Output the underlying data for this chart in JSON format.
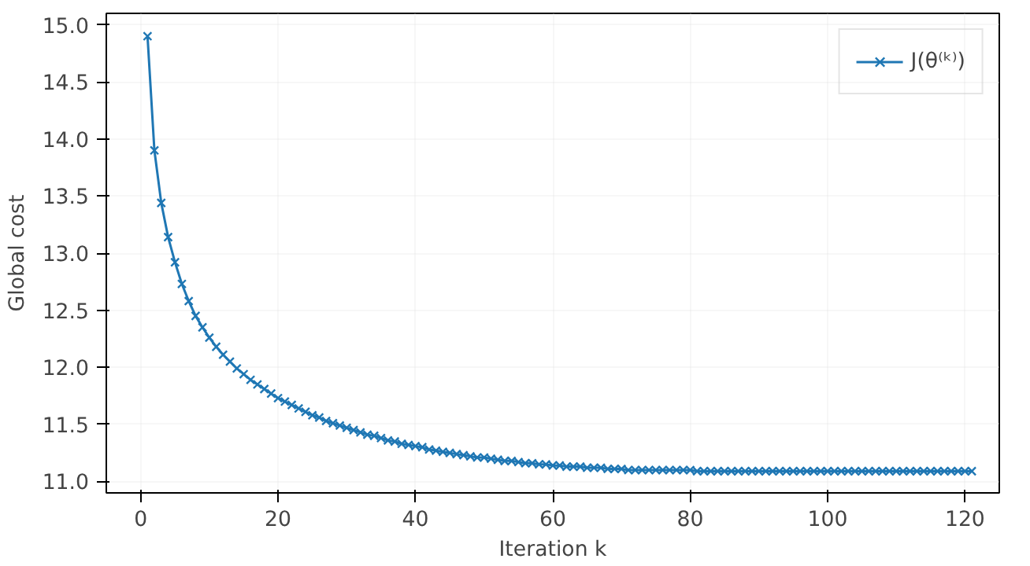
{
  "chart_data": {
    "type": "line",
    "xlabel": "Iteration k",
    "ylabel": "Global cost",
    "x": [
      1,
      2,
      3,
      4,
      5,
      6,
      7,
      8,
      9,
      10,
      11,
      12,
      13,
      14,
      15,
      16,
      17,
      18,
      19,
      20,
      21,
      22,
      23,
      24,
      25,
      26,
      27,
      28,
      29,
      30,
      31,
      32,
      33,
      34,
      35,
      36,
      37,
      38,
      39,
      40,
      41,
      42,
      43,
      44,
      45,
      46,
      47,
      48,
      49,
      50,
      51,
      52,
      53,
      54,
      55,
      56,
      57,
      58,
      59,
      60,
      61,
      62,
      63,
      64,
      65,
      66,
      67,
      68,
      69,
      70,
      71,
      72,
      73,
      74,
      75,
      76,
      77,
      78,
      79,
      80,
      81,
      82,
      83,
      84,
      85,
      86,
      87,
      88,
      89,
      90,
      91,
      92,
      93,
      94,
      95,
      96,
      97,
      98,
      99,
      100,
      101,
      102,
      103,
      104,
      105,
      106,
      107,
      108,
      109,
      110,
      111,
      112,
      113,
      114,
      115,
      116,
      117,
      118,
      119,
      120,
      121
    ],
    "series": [
      {
        "name": "J(θ⁽ᵏ⁾)",
        "color": "#1f77b4",
        "values": [
          14.9,
          13.9,
          13.44,
          13.14,
          12.92,
          12.73,
          12.58,
          12.45,
          12.35,
          12.26,
          12.18,
          12.11,
          12.05,
          11.99,
          11.94,
          11.89,
          11.85,
          11.81,
          11.77,
          11.73,
          11.7,
          11.67,
          11.64,
          11.61,
          11.58,
          11.56,
          11.53,
          11.51,
          11.49,
          11.47,
          11.45,
          11.43,
          11.41,
          11.4,
          11.38,
          11.36,
          11.35,
          11.33,
          11.32,
          11.31,
          11.3,
          11.28,
          11.27,
          11.26,
          11.25,
          11.24,
          11.23,
          11.22,
          11.21,
          11.21,
          11.2,
          11.19,
          11.18,
          11.18,
          11.17,
          11.16,
          11.16,
          11.15,
          11.15,
          11.14,
          11.14,
          11.13,
          11.13,
          11.13,
          11.12,
          11.12,
          11.12,
          11.11,
          11.11,
          11.11,
          11.1,
          11.1,
          11.1,
          11.1,
          11.1,
          11.1,
          11.1,
          11.1,
          11.1,
          11.1,
          11.09,
          11.09,
          11.09,
          11.09,
          11.09,
          11.09,
          11.09,
          11.09,
          11.09,
          11.09,
          11.09,
          11.09,
          11.09,
          11.09,
          11.09,
          11.09,
          11.09,
          11.09,
          11.09,
          11.09,
          11.09,
          11.09,
          11.09,
          11.09,
          11.09,
          11.09,
          11.09,
          11.09,
          11.09,
          11.09,
          11.09,
          11.09,
          11.09,
          11.09,
          11.09,
          11.09,
          11.09,
          11.09,
          11.09,
          11.09,
          11.09
        ]
      }
    ],
    "xlim": [
      -5,
      125
    ],
    "ylim": [
      10.9,
      15.1
    ],
    "xticks": [
      0,
      20,
      40,
      60,
      80,
      100,
      120
    ],
    "yticks": [
      {
        "value": 11,
        "label": "11.0"
      },
      11.5,
      {
        "value": 12,
        "label": "12.0"
      },
      12.5,
      {
        "value": 13,
        "label": "13.0"
      },
      13.5,
      {
        "value": 14,
        "label": "14.0"
      },
      14.5,
      {
        "value": 15,
        "label": "15.0"
      }
    ],
    "grid": true,
    "legend": "top right",
    "marker": "cross",
    "line_style": "solid"
  }
}
